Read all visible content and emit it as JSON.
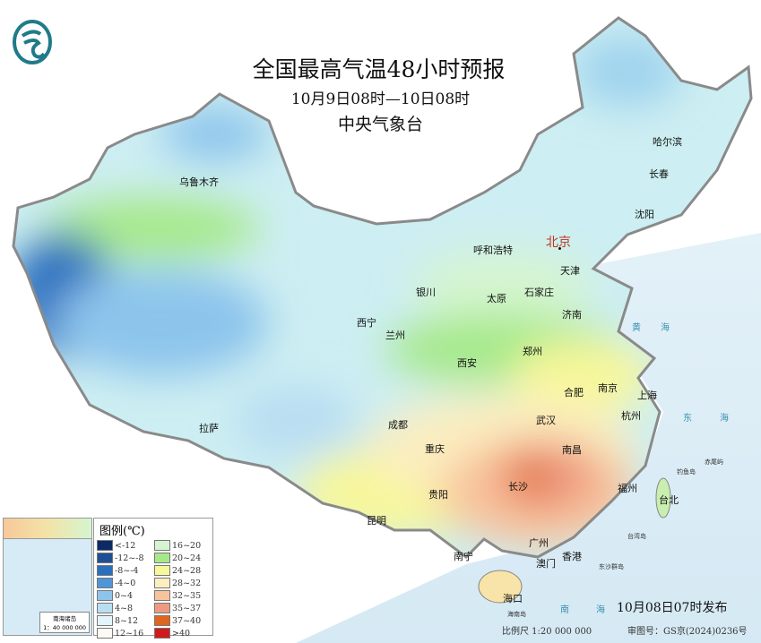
{
  "header": {
    "title": "全国最高气温48小时预报",
    "period": "10月9日08时—10日08时",
    "agency": "中央气象台"
  },
  "logo": {
    "icon": "cma-logo-icon",
    "color": "#1f7b8a"
  },
  "cities": [
    {
      "name": "北京",
      "capital": true
    },
    {
      "name": "乌鲁木齐"
    },
    {
      "name": "哈尔滨"
    },
    {
      "name": "长春"
    },
    {
      "name": "沈阳"
    },
    {
      "name": "呼和浩特"
    },
    {
      "name": "天津"
    },
    {
      "name": "银川"
    },
    {
      "name": "太原"
    },
    {
      "name": "石家庄"
    },
    {
      "name": "济南"
    },
    {
      "name": "西宁"
    },
    {
      "name": "兰州"
    },
    {
      "name": "郑州"
    },
    {
      "name": "西安"
    },
    {
      "name": "合肥"
    },
    {
      "name": "南京"
    },
    {
      "name": "上海"
    },
    {
      "name": "拉萨"
    },
    {
      "name": "成都"
    },
    {
      "name": "武汉"
    },
    {
      "name": "杭州"
    },
    {
      "name": "重庆"
    },
    {
      "name": "长沙"
    },
    {
      "name": "南昌"
    },
    {
      "name": "贵阳"
    },
    {
      "name": "福州"
    },
    {
      "name": "台北"
    },
    {
      "name": "昆明"
    },
    {
      "name": "广州"
    },
    {
      "name": "香港"
    },
    {
      "name": "澳门"
    },
    {
      "name": "南宁"
    },
    {
      "name": "海口"
    }
  ],
  "seas": {
    "huanghai": [
      "黄",
      "海"
    ],
    "donghai": [
      "东",
      "海"
    ],
    "nanhai": [
      "南",
      "海"
    ]
  },
  "islands": [
    "台湾岛",
    "东沙群岛",
    "海南岛",
    "钓鱼岛",
    "赤尾屿"
  ],
  "legend": {
    "title": "图例(℃)",
    "items": [
      {
        "label": "<-12",
        "color": "#0b2a66"
      },
      {
        "label": "16~20",
        "color": "#d5f5d0"
      },
      {
        "label": "-12~-8",
        "color": "#1f4f94"
      },
      {
        "label": "20~24",
        "color": "#a6e98a"
      },
      {
        "label": "-8~-4",
        "color": "#2a6fbf"
      },
      {
        "label": "24~28",
        "color": "#f8f79a"
      },
      {
        "label": "-4~0",
        "color": "#4f95d8"
      },
      {
        "label": "28~32",
        "color": "#fbeec0"
      },
      {
        "label": "0~4",
        "color": "#8cc4ec"
      },
      {
        "label": "32~35",
        "color": "#f8c39c"
      },
      {
        "label": "4~8",
        "color": "#b9def2"
      },
      {
        "label": "35~37",
        "color": "#ee9a80"
      },
      {
        "label": "8~12",
        "color": "#e3f4fa"
      },
      {
        "label": "37~40",
        "color": "#e0651f"
      },
      {
        "label": "12~16",
        "color": "#fbfbf4"
      },
      {
        "label": ">40",
        "color": "#cf1b1b"
      }
    ]
  },
  "inset": {
    "title": "南海诸岛",
    "scale": "1：40 000 000"
  },
  "footer": {
    "issued": "10月08日07时发布",
    "scale": "比例尺 1:20 000 000",
    "approval": "审图号：GS京(2024)0236号"
  }
}
